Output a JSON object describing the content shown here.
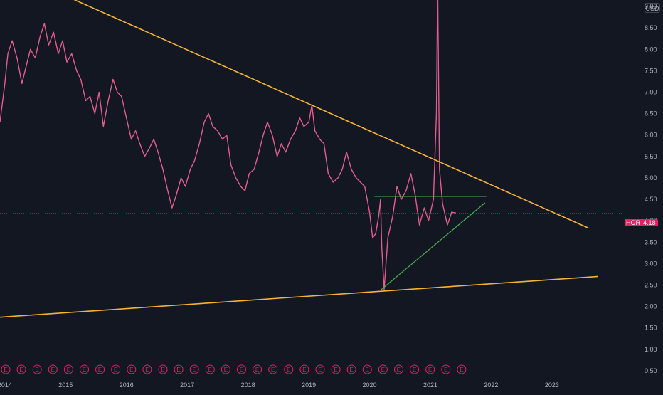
{
  "currency": "USD",
  "last_price": {
    "symbol": "HOR",
    "value": "4.18"
  },
  "colors": {
    "background": "#131722",
    "price": "#e35d8e",
    "trendline": "#f5b335",
    "triangle": "#4caf50",
    "axis_text": "#b2b5be",
    "earnings": "#e91e63"
  },
  "chart_data": {
    "type": "line",
    "x_unit": "year",
    "xlim": [
      2013.92,
      2024.16
    ],
    "ylim": [
      0.35,
      9.15
    ],
    "x_ticks": [
      "2014",
      "2015",
      "2016",
      "2017",
      "2018",
      "2019",
      "2020",
      "2021",
      "2022",
      "2023"
    ],
    "y_ticks": [
      "0.50",
      "1.00",
      "1.50",
      "2.00",
      "2.50",
      "3.00",
      "3.50",
      "4.00",
      "4.50",
      "5.00",
      "5.50",
      "6.00",
      "6.50",
      "7.00",
      "7.50",
      "8.00",
      "8.50",
      "9.00"
    ],
    "y_tick_values": [
      0.5,
      1.0,
      1.5,
      2.0,
      2.5,
      3.0,
      3.5,
      4.0,
      4.5,
      5.0,
      5.5,
      6.0,
      6.5,
      7.0,
      7.5,
      8.0,
      8.5,
      9.0
    ],
    "series": [
      {
        "x": [
          2013.92,
          2014.0,
          2014.05,
          2014.12,
          2014.2,
          2014.28,
          2014.35,
          2014.42,
          2014.5,
          2014.58,
          2014.65,
          2014.72,
          2014.8,
          2014.88,
          2014.95,
          2015.02,
          2015.1,
          2015.18,
          2015.25,
          2015.33,
          2015.4,
          2015.48,
          2015.55,
          2015.62,
          2015.7,
          2015.78,
          2015.85,
          2015.92,
          2016.0,
          2016.08,
          2016.15,
          2016.22,
          2016.3,
          2016.38,
          2016.45,
          2016.52,
          2016.6,
          2016.68,
          2016.75,
          2016.82,
          2016.9,
          2016.97,
          2017.05,
          2017.12,
          2017.2,
          2017.28,
          2017.35,
          2017.42,
          2017.5,
          2017.58,
          2017.65,
          2017.72,
          2017.8,
          2017.88,
          2017.95,
          2018.02,
          2018.1,
          2018.18,
          2018.25,
          2018.32,
          2018.4,
          2018.48,
          2018.55,
          2018.62,
          2018.7,
          2018.78,
          2018.85,
          2018.92,
          2019.0,
          2019.05,
          2019.1,
          2019.18,
          2019.25,
          2019.32,
          2019.4,
          2019.48,
          2019.55,
          2019.62,
          2019.7,
          2019.78,
          2019.85,
          2019.92,
          2020.0,
          2020.05,
          2020.1,
          2020.15,
          2020.18,
          2020.2,
          2020.24,
          2020.3,
          2020.38,
          2020.45,
          2020.52,
          2020.6,
          2020.68,
          2020.75,
          2020.82,
          2020.9,
          2020.97,
          2021.05,
          2021.1,
          2021.12,
          2021.15,
          2021.2,
          2021.28,
          2021.35,
          2021.42
        ],
        "y": [
          6.3,
          7.2,
          7.9,
          8.2,
          7.8,
          7.2,
          7.6,
          8.0,
          7.8,
          8.3,
          8.6,
          8.1,
          8.4,
          7.9,
          8.2,
          7.7,
          7.9,
          7.5,
          7.3,
          6.8,
          6.9,
          6.5,
          7.0,
          6.2,
          6.8,
          7.3,
          7.0,
          6.9,
          6.4,
          5.9,
          6.1,
          5.8,
          5.5,
          5.7,
          5.9,
          5.6,
          5.2,
          4.7,
          4.3,
          4.6,
          5.0,
          4.8,
          5.2,
          5.4,
          5.8,
          6.3,
          6.5,
          6.2,
          6.1,
          5.9,
          6.0,
          5.3,
          5.0,
          4.8,
          4.7,
          5.1,
          5.2,
          5.6,
          6.0,
          6.3,
          6.0,
          5.5,
          5.8,
          5.6,
          5.9,
          6.1,
          6.4,
          6.2,
          6.3,
          6.7,
          6.1,
          5.9,
          5.8,
          5.1,
          4.9,
          5.0,
          5.2,
          5.6,
          5.2,
          5.0,
          4.9,
          4.8,
          4.2,
          3.6,
          3.7,
          4.1,
          4.5,
          3.4,
          2.4,
          3.6,
          4.1,
          4.8,
          4.5,
          4.7,
          5.1,
          4.6,
          3.9,
          4.3,
          4.0,
          4.5,
          6.5,
          9.5,
          5.2,
          4.4,
          3.9,
          4.2,
          4.18
        ]
      }
    ],
    "trendlines": [
      {
        "color": "#f5b335",
        "x": [
          2014.2,
          2023.6
        ],
        "y": [
          9.75,
          3.83
        ]
      },
      {
        "color": "#f5b335",
        "x": [
          2013.92,
          2023.76
        ],
        "y": [
          1.75,
          2.7
        ]
      },
      {
        "color": "#4caf50",
        "x": [
          2020.18,
          2021.9
        ],
        "y": [
          2.38,
          4.42
        ]
      },
      {
        "color": "#4caf50",
        "x": [
          2020.08,
          2021.92
        ],
        "y": [
          4.57,
          4.57
        ]
      }
    ],
    "current_price_line": 4.18,
    "earnings_markers": {
      "label": "E",
      "count": 30,
      "x_start": 2013.92,
      "x_end": 2021.42
    }
  }
}
